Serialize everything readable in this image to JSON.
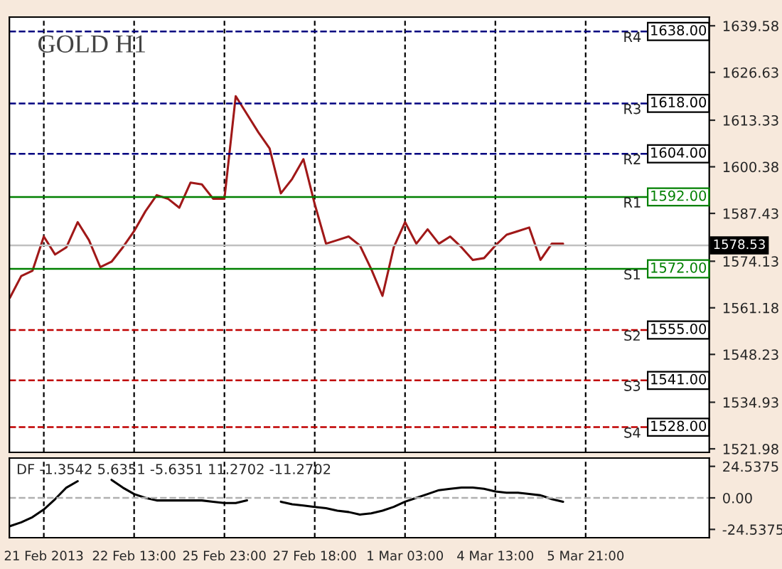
{
  "chart_data": [
    {
      "type": "line",
      "title": "GOLD H1",
      "ylim": [
        1521,
        1642
      ],
      "categories": [
        null,
        null,
        null,
        null,
        null,
        null,
        null,
        null,
        null,
        null,
        null,
        null,
        null,
        null,
        null,
        null,
        null,
        null,
        null,
        null,
        null,
        null,
        null,
        null,
        null,
        null,
        null,
        null,
        null,
        null,
        null,
        null,
        null,
        null,
        null,
        null,
        null,
        null,
        null,
        null,
        null,
        null,
        null,
        null,
        null,
        null,
        null,
        null,
        null,
        null,
        null,
        null,
        null,
        null,
        null,
        null,
        null,
        null,
        null,
        null,
        null,
        null
      ],
      "yticks": [
        {
          "value": 1521.98,
          "label": "1521.98"
        },
        {
          "value": 1534.93,
          "label": "1534.93"
        },
        {
          "value": 1548.23,
          "label": "1548.23"
        },
        {
          "value": 1561.18,
          "label": "1561.18"
        },
        {
          "value": 1574.13,
          "label": "1574.13"
        },
        {
          "value": 1587.43,
          "label": "1587.43"
        },
        {
          "value": 1600.38,
          "label": "1600.38"
        },
        {
          "value": 1613.33,
          "label": "1613.33"
        },
        {
          "value": 1626.63,
          "label": "1626.63"
        },
        {
          "value": 1639.58,
          "label": "1639.58"
        }
      ],
      "tick_labels": "y",
      "grid": "x",
      "series": [
        {
          "color": "#a01818",
          "values": [
            1564,
            1570,
            1571.5,
            1581,
            1576,
            1578,
            1585,
            1580,
            1572.5,
            1574,
            1578,
            1582.5,
            1588,
            1592.5,
            1591.5,
            1589,
            1596,
            1595.5,
            1591.5,
            1591.5,
            1620,
            1615,
            1610,
            1605.5,
            1593,
            1597,
            1602.5,
            1590,
            1579,
            1580,
            1581,
            1578.5,
            1572,
            1564.5,
            1578,
            1585,
            1579,
            1583,
            1579,
            1581,
            1578,
            1574.5,
            1575,
            1578.5,
            1581.5,
            1582.5,
            1583.5,
            1574.5,
            1579,
            1579,
            null,
            null,
            null,
            null,
            null,
            null,
            null,
            null,
            null,
            null,
            null,
            null
          ]
        }
      ],
      "ref_lines": [
        {
          "axis": "y",
          "value": 1638,
          "label": "1638.00",
          "color": "#000080",
          "line_style": "dashed"
        },
        {
          "axis": "y",
          "value": 1618,
          "label": "1618.00",
          "color": "#000080",
          "line_style": "dashed"
        },
        {
          "axis": "y",
          "value": 1604,
          "label": "1604.00",
          "color": "#000080",
          "line_style": "dashed"
        },
        {
          "axis": "y",
          "value": 1592,
          "label": "1592.00",
          "color": "#008000",
          "line_style": "solid"
        },
        {
          "axis": "y",
          "value": 1578.53,
          "label": "1578.53",
          "color": "#c0c0c0",
          "line_style": "solid"
        },
        {
          "axis": "y",
          "value": 1572,
          "label": "1572.00",
          "color": "#008000",
          "line_style": "solid"
        },
        {
          "axis": "y",
          "value": 1555,
          "label": "1555.00",
          "color": "#c00000",
          "line_style": "dashed"
        },
        {
          "axis": "y",
          "value": 1541,
          "label": "1541.00",
          "color": "#c00000",
          "line_style": "dashed"
        },
        {
          "axis": "y",
          "value": 1528,
          "label": "1528.00",
          "color": "#c00000",
          "line_style": "dashed"
        }
      ],
      "annotations": [
        {
          "text": "R4",
          "y": 1638
        },
        {
          "text": "R3",
          "y": 1618
        },
        {
          "text": "R2",
          "y": 1604
        },
        {
          "text": "R1",
          "y": 1592
        },
        {
          "text": "S1",
          "y": 1572
        },
        {
          "text": "S2",
          "y": 1555
        },
        {
          "text": "S3",
          "y": 1541
        },
        {
          "text": "S4",
          "y": 1528
        }
      ]
    },
    {
      "type": "line",
      "ylim": [
        -31,
        31
      ],
      "categories": [
        null,
        null,
        null,
        "21 Feb 2013",
        null,
        null,
        null,
        null,
        null,
        null,
        null,
        "22 Feb 13:00",
        null,
        null,
        null,
        null,
        null,
        null,
        null,
        "25 Feb 23:00",
        null,
        null,
        null,
        null,
        null,
        null,
        null,
        "27 Feb 18:00",
        null,
        null,
        null,
        null,
        null,
        null,
        null,
        "1 Mar 03:00",
        null,
        null,
        null,
        null,
        null,
        null,
        null,
        "4 Mar 13:00",
        null,
        null,
        null,
        null,
        null,
        null,
        null,
        "5 Mar 21:00",
        null,
        null,
        null,
        null,
        null,
        null,
        null,
        null,
        null,
        null
      ],
      "yticks": [
        {
          "value": -24.5375,
          "label": "-24.5375"
        },
        {
          "value": 0,
          "label": "0.00"
        },
        {
          "value": 24.5375,
          "label": "24.5375"
        }
      ],
      "grid": "x",
      "ref_lines": [
        {
          "axis": "y",
          "value": 0,
          "color": "#b0b0b0",
          "line_style": "dashed"
        }
      ],
      "series": [
        {
          "color": "#000000",
          "values": [
            -22,
            -19,
            -15,
            -9,
            -1,
            8,
            13,
            null,
            null,
            14,
            8,
            3,
            0,
            -2,
            -2,
            -2,
            -2,
            -2,
            -3,
            -4,
            -4,
            -2,
            null,
            null,
            -3,
            -5,
            -6,
            -7,
            -8,
            -10,
            -11,
            -13,
            -12,
            -10,
            -7,
            -3,
            0,
            3,
            6,
            7,
            8,
            8,
            7,
            5,
            4,
            4,
            3,
            2,
            -1,
            -3,
            null,
            null,
            null,
            null,
            null,
            null,
            null,
            null,
            null,
            null,
            null,
            null
          ]
        }
      ],
      "annotations": [
        "DF -1.3542 5.6351 -5.6351 11.2702 -11.2702"
      ]
    }
  ]
}
